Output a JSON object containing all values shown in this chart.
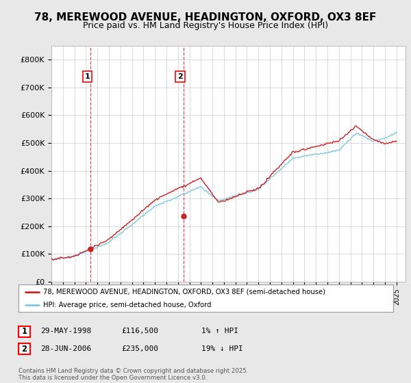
{
  "title": "78, MEREWOOD AVENUE, HEADINGTON, OXFORD, OX3 8EF",
  "subtitle": "Price paid vs. HM Land Registry's House Price Index (HPI)",
  "title_fontsize": 11,
  "subtitle_fontsize": 9,
  "background_color": "#e8e8e8",
  "plot_bg_color": "#ffffff",
  "ylim": [
    0,
    850000
  ],
  "yticks": [
    0,
    100000,
    200000,
    300000,
    400000,
    500000,
    600000,
    700000,
    800000
  ],
  "ytick_labels": [
    "£0",
    "£100K",
    "£200K",
    "£300K",
    "£400K",
    "£500K",
    "£600K",
    "£700K",
    "£800K"
  ],
  "hpi_color": "#7ec8e3",
  "price_color": "#cc2222",
  "marker1_x": 1998.41,
  "marker1_y": 116500,
  "marker2_x": 2006.49,
  "marker2_y": 235000,
  "legend_property_label": "78, MEREWOOD AVENUE, HEADINGTON, OXFORD, OX3 8EF (semi-detached house)",
  "legend_hpi_label": "HPI: Average price, semi-detached house, Oxford",
  "annotation1_date": "29-MAY-1998",
  "annotation1_price": "£116,500",
  "annotation1_hpi": "1% ↑ HPI",
  "annotation2_date": "28-JUN-2006",
  "annotation2_price": "£235,000",
  "annotation2_hpi": "19% ↓ HPI",
  "footer": "Contains HM Land Registry data © Crown copyright and database right 2025.\nThis data is licensed under the Open Government Licence v3.0.",
  "vline1_x": 1998.41,
  "vline2_x": 2006.49,
  "xlim_left": 1995.0,
  "xlim_right": 2025.8
}
